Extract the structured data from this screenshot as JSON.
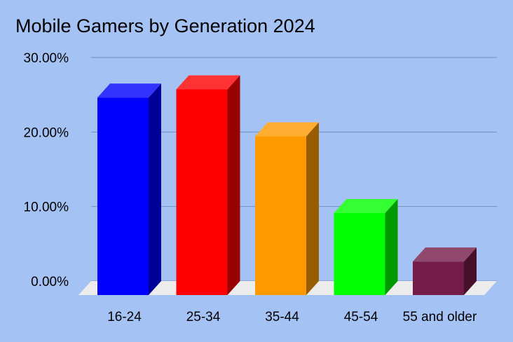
{
  "chart_data": {
    "type": "bar",
    "title": "Mobile Gamers by Generation 2024",
    "categories": [
      "16-24",
      "25-34",
      "35-44",
      "45-54",
      "55 and older"
    ],
    "values": [
      26.5,
      27.6,
      21.3,
      11.0,
      4.5
    ],
    "value_format": "percent",
    "ylim": [
      0,
      30
    ],
    "yticks": [
      "0.00%",
      "10.00%",
      "20.00%",
      "30.00%"
    ],
    "ytick_values": [
      0,
      10,
      20,
      30
    ],
    "xlabel": "",
    "ylabel": "",
    "grid": true,
    "legend": "none",
    "bar_colors": [
      "#0000ff",
      "#ff0000",
      "#ff9900",
      "#00ff00",
      "#741b47"
    ],
    "background": "#a4c2f4",
    "style": "3d"
  }
}
